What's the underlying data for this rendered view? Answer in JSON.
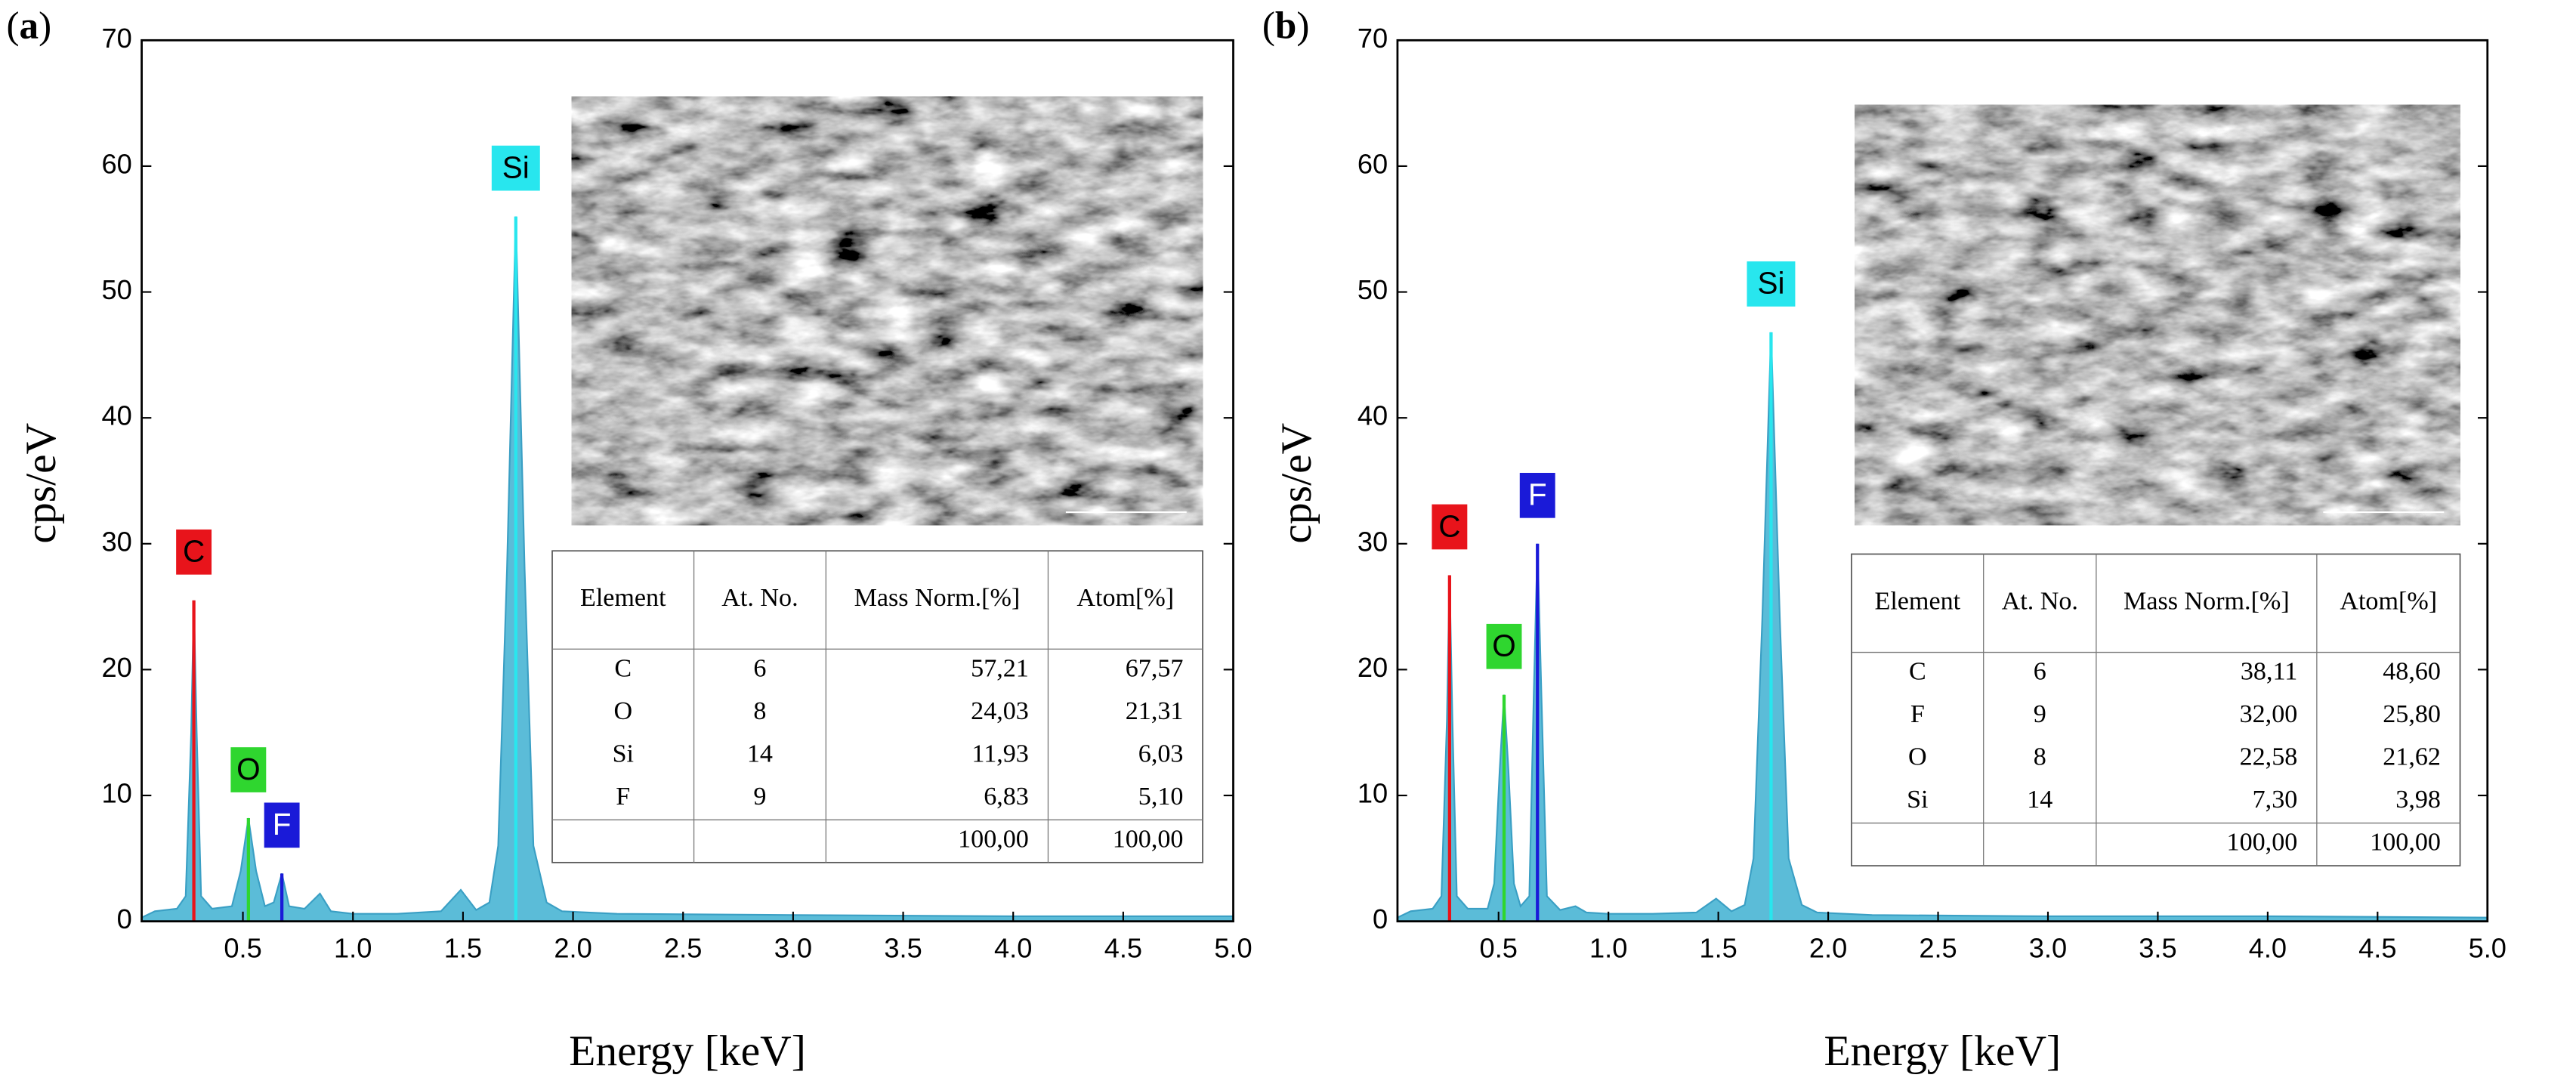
{
  "chart_data": [
    {
      "type": "line",
      "panel": "(a)",
      "xlabel": "Energy [keV]",
      "ylabel": "cps/eV",
      "xlim": [
        0.04,
        5.0
      ],
      "ylim": [
        0,
        70
      ],
      "xticks": [
        0.5,
        {
          "value": 1,
          "label": "1.0"
        },
        1.5,
        {
          "value": 2,
          "label": "2.0"
        },
        2.5,
        {
          "value": 3,
          "label": "3.0"
        },
        3.5,
        {
          "value": 4,
          "label": "4.0"
        },
        4.5,
        {
          "value": 5,
          "label": "5.0"
        }
      ],
      "yticks": [
        0,
        10,
        20,
        30,
        40,
        50,
        60,
        70
      ],
      "x": [
        0.04,
        0.1,
        0.2,
        0.24,
        0.265,
        0.277,
        0.29,
        0.31,
        0.36,
        0.45,
        0.49,
        0.525,
        0.56,
        0.6,
        0.64,
        0.677,
        0.71,
        0.78,
        0.85,
        0.9,
        1.0,
        1.2,
        1.4,
        1.49,
        1.56,
        1.62,
        1.66,
        1.7,
        1.74,
        1.78,
        1.82,
        1.88,
        1.95,
        2.2,
        3.0,
        4.0,
        5.0
      ],
      "series": [
        {
          "color": "#5bbcd8",
          "values": [
            0.3,
            0.8,
            1.0,
            2,
            15,
            25.5,
            15,
            2,
            1.0,
            1.2,
            4,
            8.2,
            4,
            1.2,
            1.5,
            3.8,
            1.2,
            1.0,
            2.2,
            0.8,
            0.6,
            0.6,
            0.8,
            2.5,
            0.9,
            1.5,
            6,
            28,
            56,
            28,
            6,
            1.5,
            0.8,
            0.6,
            0.5,
            0.4,
            0.4
          ]
        }
      ],
      "markers": [
        {
          "label": "C",
          "x": 0.277,
          "y": 25.5,
          "color": "#e8141b",
          "text_color": "#000000"
        },
        {
          "label": "O",
          "x": 0.525,
          "y": 8.2,
          "color": "#2fd62f",
          "text_color": "#000000"
        },
        {
          "label": "F",
          "x": 0.677,
          "y": 3.8,
          "color": "#1a1ad8",
          "text_color": "#ffffff"
        },
        {
          "label": "Si",
          "x": 1.74,
          "y": 56,
          "color": "#28e6ee",
          "text_color": "#000000"
        }
      ],
      "table": {
        "header": [
          "Element",
          "At. No.",
          "Mass Norm.[%]",
          "Atom[%]"
        ],
        "rows": [
          [
            "C",
            "6",
            "57,21",
            "67,57"
          ],
          [
            "O",
            "8",
            "24,03",
            "21,31"
          ],
          [
            "Si",
            "14",
            "11,93",
            "6,03"
          ],
          [
            "F",
            "9",
            "6,83",
            "5,10"
          ]
        ],
        "total": [
          "100,00",
          "100,00"
        ]
      }
    },
    {
      "type": "line",
      "panel": "(b)",
      "xlabel": "Energy [keV]",
      "ylabel": "cps/eV",
      "xlim": [
        0.04,
        5.0
      ],
      "ylim": [
        0,
        70
      ],
      "xticks": [
        0.5,
        {
          "value": 1,
          "label": "1.0"
        },
        1.5,
        {
          "value": 2,
          "label": "2.0"
        },
        2.5,
        {
          "value": 3,
          "label": "3.0"
        },
        3.5,
        {
          "value": 4,
          "label": "4.0"
        },
        4.5,
        {
          "value": 5,
          "label": "5.0"
        }
      ],
      "yticks": [
        0,
        10,
        20,
        30,
        40,
        50,
        60,
        70
      ],
      "x": [
        0.04,
        0.1,
        0.2,
        0.24,
        0.265,
        0.277,
        0.29,
        0.31,
        0.36,
        0.45,
        0.48,
        0.505,
        0.525,
        0.545,
        0.57,
        0.6,
        0.64,
        0.66,
        0.677,
        0.695,
        0.72,
        0.78,
        0.85,
        0.9,
        1.0,
        1.2,
        1.4,
        1.49,
        1.56,
        1.62,
        1.66,
        1.7,
        1.74,
        1.78,
        1.82,
        1.88,
        1.95,
        2.2,
        3.0,
        4.0,
        5.0
      ],
      "series": [
        {
          "color": "#5bbcd8",
          "values": [
            0.3,
            0.8,
            1.0,
            2,
            16,
            27.5,
            16,
            2,
            1.0,
            1.0,
            3,
            12,
            18,
            12,
            3,
            1.2,
            2,
            18,
            30,
            18,
            2,
            0.9,
            1.2,
            0.7,
            0.6,
            0.6,
            0.7,
            1.8,
            0.8,
            1.3,
            5,
            24,
            46.8,
            24,
            5,
            1.3,
            0.7,
            0.5,
            0.4,
            0.4,
            0.3
          ]
        }
      ],
      "markers": [
        {
          "label": "C",
          "x": 0.277,
          "y": 27.5,
          "color": "#e8141b",
          "text_color": "#000000"
        },
        {
          "label": "O",
          "x": 0.525,
          "y": 18,
          "color": "#2fd62f",
          "text_color": "#000000"
        },
        {
          "label": "F",
          "x": 0.677,
          "y": 30,
          "color": "#1a1ad8",
          "text_color": "#ffffff"
        },
        {
          "label": "Si",
          "x": 1.74,
          "y": 46.8,
          "color": "#28e6ee",
          "text_color": "#000000"
        }
      ],
      "table": {
        "header": [
          "Element",
          "At. No.",
          "Mass Norm.[%]",
          "Atom[%]"
        ],
        "rows": [
          [
            "C",
            "6",
            "38,11",
            "48,60"
          ],
          [
            "F",
            "9",
            "32,00",
            "25,80"
          ],
          [
            "O",
            "8",
            "22,58",
            "21,62"
          ],
          [
            "Si",
            "14",
            "7,30",
            "3,98"
          ]
        ],
        "total": [
          "100,00",
          "100,00"
        ]
      }
    }
  ]
}
